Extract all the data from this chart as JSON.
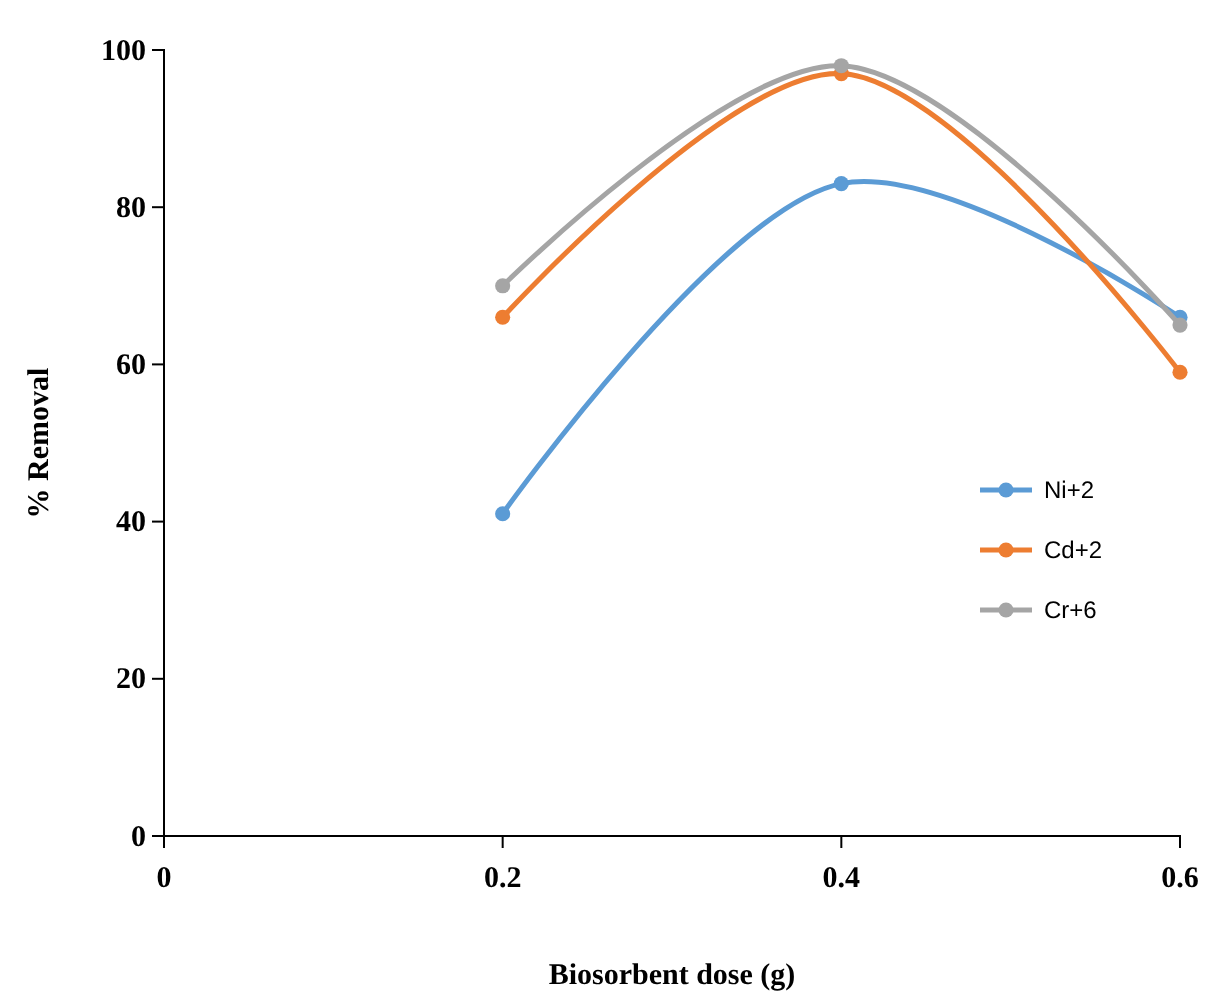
{
  "chart_data": {
    "type": "line",
    "xlabel": "Biosorbent dose (g)",
    "ylabel": "% Removal",
    "x": [
      0.2,
      0.4,
      0.6
    ],
    "series": [
      {
        "name": "Ni+2",
        "color": "#5b9bd5",
        "values": [
          41,
          83,
          66
        ]
      },
      {
        "name": "Cd+2",
        "color": "#ed7d31",
        "values": [
          66,
          97,
          59
        ]
      },
      {
        "name": "Cr+6",
        "color": "#a5a5a5",
        "values": [
          70,
          98,
          65
        ]
      }
    ],
    "xlim": [
      0,
      0.6
    ],
    "xticks": [
      0,
      0.2,
      0.4,
      0.6
    ],
    "ylim": [
      0,
      100
    ],
    "yticks": [
      0,
      20,
      40,
      60,
      80,
      100
    ],
    "grid": false,
    "legend": "right",
    "marker": "circle",
    "line_style": "solid"
  }
}
